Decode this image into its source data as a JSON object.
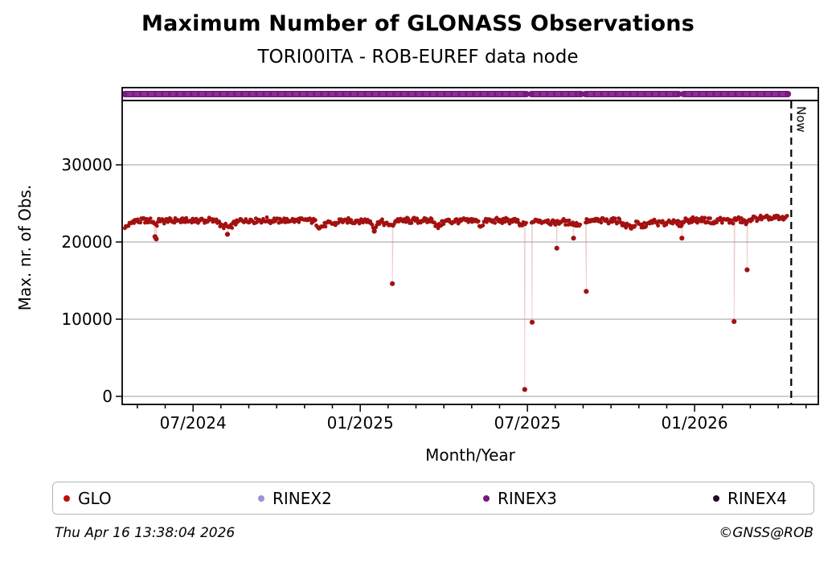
{
  "header": {
    "title": "Maximum Number of GLONASS Observations",
    "subtitle": "TORI00ITA - ROB-EUREF data node"
  },
  "footer": {
    "timestamp": "Thu Apr 16 13:38:04 2026",
    "credit": "©GNSS@ROB"
  },
  "legend": {
    "items": [
      {
        "label": "GLO",
        "color": "#bb0f0f"
      },
      {
        "label": "RINEX2",
        "color": "#9a94cf"
      },
      {
        "label": "RINEX3",
        "color": "#7a1a80"
      },
      {
        "label": "RINEX4",
        "color": "#240926"
      }
    ]
  },
  "chart_data": {
    "type": "scatter",
    "title": "Maximum Number of GLONASS Observations",
    "subtitle": "TORI00ITA - ROB-EUREF data node",
    "xlabel": "Month/Year",
    "ylabel": "Max. nr. of Obs.",
    "x_unit": "decimal_year",
    "xlim": [
      2024.288,
      2026.37
    ],
    "ylim": [
      -1042,
      38333
    ],
    "yticks": [
      0,
      10000,
      20000,
      30000
    ],
    "xticks": [
      {
        "t": 2024.5,
        "label": "07/2024"
      },
      {
        "t": 2025.0,
        "label": "01/2025"
      },
      {
        "t": 2025.5,
        "label": "07/2025"
      },
      {
        "t": 2026.0,
        "label": "01/2026"
      }
    ],
    "minor_xticks": "monthly",
    "grid": "horizontal",
    "grid_color": "#b0b0b0",
    "now": {
      "t": 2026.289,
      "label": "Now",
      "line_style": "dashed"
    },
    "series": [
      {
        "name": "GLO",
        "color": "#a31111",
        "marker": "dot",
        "point_interval_days": 1,
        "jitter_obs": 650,
        "baseline_anchors": [
          [
            2024.296,
            22000
          ],
          [
            2024.3,
            21800
          ],
          [
            2024.307,
            22200
          ],
          [
            2024.32,
            22700
          ],
          [
            2024.37,
            22800
          ],
          [
            2024.383,
            22500
          ],
          [
            2024.392,
            22400
          ],
          [
            2024.4,
            22750
          ],
          [
            2024.57,
            22800
          ],
          [
            2024.584,
            22100
          ],
          [
            2024.61,
            21900
          ],
          [
            2024.625,
            22400
          ],
          [
            2024.64,
            22800
          ],
          [
            2024.86,
            22800
          ],
          [
            2024.873,
            22100
          ],
          [
            2024.89,
            22000
          ],
          [
            2024.905,
            22500
          ],
          [
            2024.92,
            22250
          ],
          [
            2024.935,
            22700
          ],
          [
            2025.03,
            22750
          ],
          [
            2025.042,
            21700
          ],
          [
            2025.055,
            22700
          ],
          [
            2025.088,
            22200
          ],
          [
            2025.094,
            21900
          ],
          [
            2025.103,
            22750
          ],
          [
            2025.22,
            22800
          ],
          [
            2025.232,
            21800
          ],
          [
            2025.248,
            22650
          ],
          [
            2025.35,
            22800
          ],
          [
            2025.36,
            21900
          ],
          [
            2025.372,
            22750
          ],
          [
            2025.47,
            22750
          ],
          [
            2025.48,
            22000
          ],
          [
            2025.49,
            22300
          ],
          [
            2025.513,
            22700
          ],
          [
            2025.56,
            22750
          ],
          [
            2025.58,
            22400
          ],
          [
            2025.6,
            22700
          ],
          [
            2025.65,
            22300
          ],
          [
            2025.658,
            22200
          ],
          [
            2025.673,
            22600
          ],
          [
            2025.7,
            22750
          ],
          [
            2025.775,
            22800
          ],
          [
            2025.79,
            22150
          ],
          [
            2025.81,
            21950
          ],
          [
            2025.828,
            22350
          ],
          [
            2025.848,
            22050
          ],
          [
            2025.875,
            22650
          ],
          [
            2025.905,
            22350
          ],
          [
            2025.93,
            22750
          ],
          [
            2025.955,
            22250
          ],
          [
            2025.975,
            22850
          ],
          [
            2026.04,
            22850
          ],
          [
            2026.057,
            22450
          ],
          [
            2026.075,
            22900
          ],
          [
            2026.115,
            22650
          ],
          [
            2026.13,
            23050
          ],
          [
            2026.155,
            22400
          ],
          [
            2026.17,
            23050
          ],
          [
            2026.279,
            23100
          ]
        ],
        "gaps": [
          [
            2025.497,
            2025.512
          ],
          [
            2025.659,
            2025.672
          ]
        ],
        "anomalies": [
          [
            2024.386,
            20700
          ],
          [
            2024.39,
            20400
          ],
          [
            2024.603,
            21000
          ],
          [
            2025.042,
            21400
          ],
          [
            2025.096,
            14600
          ],
          [
            2025.492,
            900
          ],
          [
            2025.514,
            9600
          ],
          [
            2025.588,
            19200
          ],
          [
            2025.638,
            20500
          ],
          [
            2025.676,
            13600
          ],
          [
            2025.962,
            20500
          ],
          [
            2026.118,
            9700
          ],
          [
            2026.157,
            16400
          ]
        ]
      },
      {
        "name": "RINEX2",
        "color": "#9a94cf",
        "strip_segments": []
      },
      {
        "name": "RINEX3",
        "color": "#7a1a80",
        "strip_segments": [
          [
            2024.296,
            2025.497
          ],
          [
            2025.512,
            2025.661
          ],
          [
            2025.674,
            2025.952
          ],
          [
            2025.967,
            2026.279
          ]
        ]
      },
      {
        "name": "RINEX4",
        "color": "#240926",
        "strip_segments": []
      }
    ]
  }
}
